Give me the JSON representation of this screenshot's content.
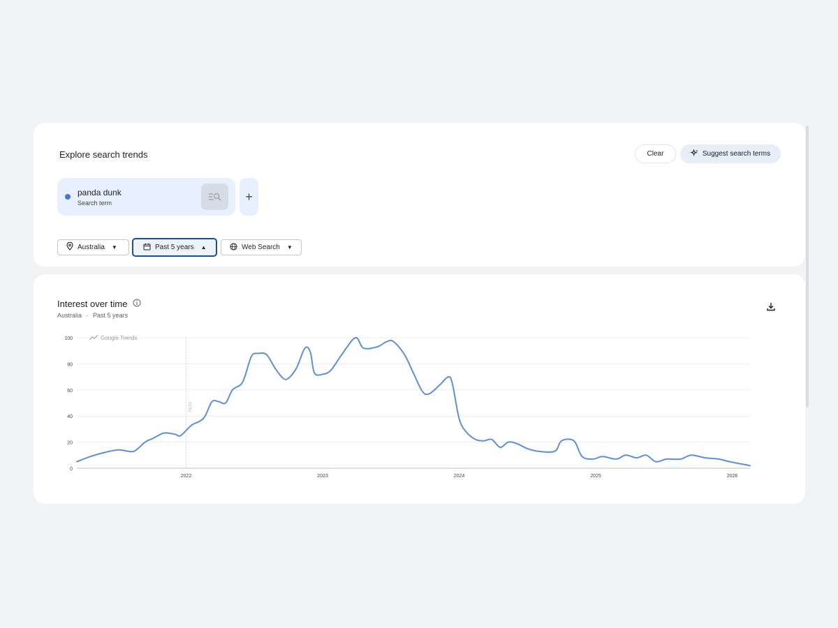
{
  "explore": {
    "heading": "Explore search trends",
    "clear_label": "Clear",
    "suggest_label": "Suggest search terms",
    "term": {
      "name": "panda dunk",
      "sub": "Search term",
      "dot_color": "#3c78d8"
    },
    "filters": {
      "geo": "Australia",
      "time": "Past 5 years",
      "property": "Web Search"
    }
  },
  "chart_panel": {
    "title": "Interest over time",
    "subtitle_geo": "Australia",
    "subtitle_sep": "·",
    "subtitle_time": "Past 5 years",
    "watermark": "Google Trends",
    "note_label": "Note"
  },
  "icons": {
    "location": "location-pin-icon",
    "time": "calendar-icon",
    "property": "globe-icon",
    "info": "info-icon",
    "download": "download-icon",
    "add": "plus-icon",
    "suggest": "sparkle-icon"
  },
  "chart_data": {
    "type": "line",
    "title": "",
    "xlabel": "",
    "ylabel": "",
    "ylim": [
      0,
      100
    ],
    "yticks": [
      0,
      20,
      40,
      60,
      80,
      100
    ],
    "xlim": [
      2021.2,
      2026.13
    ],
    "xticks": [
      {
        "v": 2022,
        "label": "2022"
      },
      {
        "v": 2023,
        "label": "2023"
      },
      {
        "v": 2024,
        "label": "2024"
      },
      {
        "v": 2025,
        "label": "2025"
      },
      {
        "v": 2026,
        "label": "2026"
      }
    ],
    "grid": true,
    "color": "#5b8fde",
    "series": [
      {
        "values": [
          [
            2021.2,
            5
          ],
          [
            2021.3,
            9
          ],
          [
            2021.4,
            12
          ],
          [
            2021.5,
            14
          ],
          [
            2021.55,
            13.5
          ],
          [
            2021.62,
            13
          ],
          [
            2021.7,
            20
          ],
          [
            2021.76,
            23
          ],
          [
            2021.84,
            27
          ],
          [
            2021.92,
            26
          ],
          [
            2021.96,
            25
          ],
          [
            2022.04,
            33
          ],
          [
            2022.1,
            36
          ],
          [
            2022.14,
            40
          ],
          [
            2022.19,
            51
          ],
          [
            2022.24,
            51
          ],
          [
            2022.29,
            50
          ],
          [
            2022.34,
            60
          ],
          [
            2022.4,
            64
          ],
          [
            2022.43,
            70
          ],
          [
            2022.48,
            86
          ],
          [
            2022.53,
            88
          ],
          [
            2022.59,
            87
          ],
          [
            2022.65,
            77
          ],
          [
            2022.71,
            69
          ],
          [
            2022.75,
            69
          ],
          [
            2022.81,
            77
          ],
          [
            2022.87,
            92
          ],
          [
            2022.91,
            89
          ],
          [
            2022.94,
            73
          ],
          [
            2023.0,
            72
          ],
          [
            2023.06,
            75
          ],
          [
            2023.14,
            87
          ],
          [
            2023.24,
            100
          ],
          [
            2023.3,
            92
          ],
          [
            2023.4,
            93
          ],
          [
            2023.47,
            97
          ],
          [
            2023.52,
            97
          ],
          [
            2023.6,
            87
          ],
          [
            2023.66,
            74
          ],
          [
            2023.73,
            59
          ],
          [
            2023.78,
            57
          ],
          [
            2023.86,
            64
          ],
          [
            2023.92,
            70
          ],
          [
            2023.95,
            65
          ],
          [
            2024.0,
            38
          ],
          [
            2024.05,
            28
          ],
          [
            2024.12,
            22
          ],
          [
            2024.18,
            21
          ],
          [
            2024.24,
            22
          ],
          [
            2024.3,
            16
          ],
          [
            2024.36,
            20
          ],
          [
            2024.42,
            19
          ],
          [
            2024.5,
            15
          ],
          [
            2024.58,
            13
          ],
          [
            2024.7,
            13
          ],
          [
            2024.75,
            21
          ],
          [
            2024.84,
            21
          ],
          [
            2024.9,
            9
          ],
          [
            2024.98,
            7
          ],
          [
            2025.05,
            9
          ],
          [
            2025.15,
            7
          ],
          [
            2025.22,
            10
          ],
          [
            2025.3,
            8
          ],
          [
            2025.37,
            10
          ],
          [
            2025.44,
            5
          ],
          [
            2025.52,
            7
          ],
          [
            2025.62,
            7
          ],
          [
            2025.7,
            10
          ],
          [
            2025.8,
            8
          ],
          [
            2025.9,
            7
          ],
          [
            2025.98,
            5
          ],
          [
            2026.13,
            2
          ]
        ]
      }
    ]
  }
}
